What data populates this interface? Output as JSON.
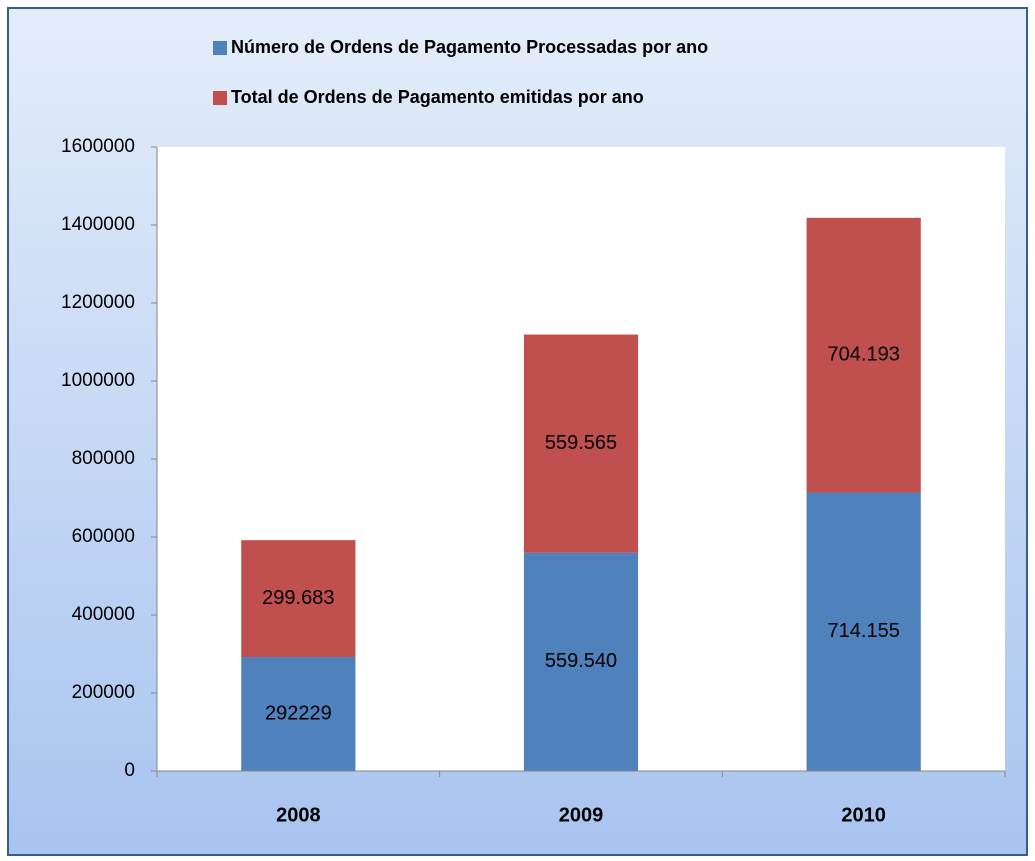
{
  "chart_data": {
    "type": "stacked_bar",
    "categories": [
      "2008",
      "2009",
      "2010"
    ],
    "series": [
      {
        "name": "Número de Ordens de Pagamento Processadas por ano",
        "color": "#4f81bd",
        "values": [
          292229,
          559540,
          714155
        ],
        "value_labels": [
          "292229",
          "559.540",
          "714.155"
        ]
      },
      {
        "name": "Total de Ordens de Pagamento emitidas por ano",
        "color": "#c0504d",
        "values": [
          299683,
          559565,
          704193
        ],
        "value_labels": [
          "299.683",
          "559.565",
          "704.193"
        ]
      }
    ],
    "ylim": [
      0,
      1600000
    ],
    "yticks": [
      0,
      200000,
      400000,
      600000,
      800000,
      1000000,
      1200000,
      1400000,
      1600000
    ],
    "legend": "top",
    "grid": false
  }
}
